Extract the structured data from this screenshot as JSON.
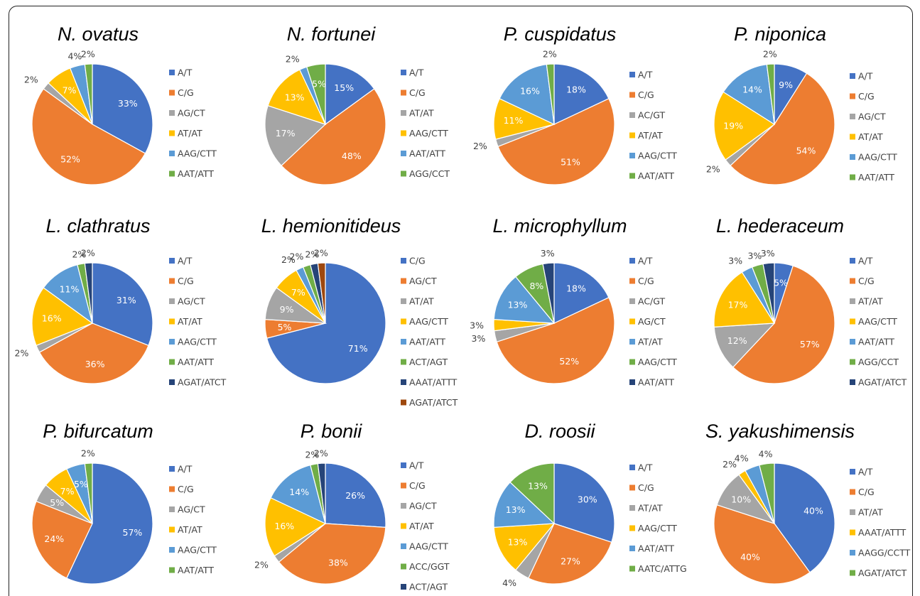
{
  "colors": {
    "blue": "#4472C4",
    "orange": "#ED7D31",
    "gray": "#A5A5A5",
    "yellow": "#FFC000",
    "lightblue": "#5B9BD5",
    "green": "#70AD47",
    "navy": "#264478",
    "rust": "#9E480E"
  },
  "chart_data": [
    {
      "type": "pie",
      "title": "N. ovatus",
      "legend": [
        "A/T",
        "C/G",
        "AG/CT",
        "AT/AT",
        "AAG/CTT",
        "AAT/ATT"
      ],
      "slices": [
        {
          "label": "A/T",
          "value": 33,
          "text": "33%",
          "color": "blue"
        },
        {
          "label": "C/G",
          "value": 52,
          "text": "52%",
          "color": "orange"
        },
        {
          "label": "AG/CT",
          "value": 2,
          "text": "2%",
          "color": "gray"
        },
        {
          "label": "AT/AT",
          "value": 7,
          "text": "7%",
          "color": "yellow"
        },
        {
          "label": "AAG/CTT",
          "value": 4,
          "text": "4%",
          "color": "lightblue"
        },
        {
          "label": "AAT/ATT",
          "value": 2,
          "text": "2%",
          "color": "green"
        }
      ]
    },
    {
      "type": "pie",
      "title": "N. fortunei",
      "legend": [
        "A/T",
        "C/G",
        "AT/AT",
        "AAG/CTT",
        "AAT/ATT",
        "AGG/CCT"
      ],
      "slices": [
        {
          "label": "A/T",
          "value": 15,
          "text": "15%",
          "color": "blue"
        },
        {
          "label": "C/G",
          "value": 48,
          "text": "48%",
          "color": "orange"
        },
        {
          "label": "AT/AT",
          "value": 17,
          "text": "17%",
          "color": "gray"
        },
        {
          "label": "AAG/CTT",
          "value": 13,
          "text": "13%",
          "color": "yellow"
        },
        {
          "label": "AAT/ATT",
          "value": 2,
          "text": "2%",
          "color": "lightblue"
        },
        {
          "label": "AGG/CCT",
          "value": 5,
          "text": "5%",
          "color": "green"
        }
      ]
    },
    {
      "type": "pie",
      "title": "P. cuspidatus",
      "legend": [
        "A/T",
        "C/G",
        "AC/GT",
        "AT/AT",
        "AAG/CTT",
        "AAT/ATT"
      ],
      "slices": [
        {
          "label": "A/T",
          "value": 18,
          "text": "18%",
          "color": "blue"
        },
        {
          "label": "C/G",
          "value": 51,
          "text": "51%",
          "color": "orange"
        },
        {
          "label": "AC/GT",
          "value": 2,
          "text": "2%",
          "color": "gray"
        },
        {
          "label": "AT/AT",
          "value": 11,
          "text": "11%",
          "color": "yellow"
        },
        {
          "label": "AAG/CTT",
          "value": 16,
          "text": "16%",
          "color": "lightblue"
        },
        {
          "label": "AAT/ATT",
          "value": 2,
          "text": "2%",
          "color": "green"
        }
      ]
    },
    {
      "type": "pie",
      "title": "P. niponica",
      "legend": [
        "A/T",
        "C/G",
        "AG/CT",
        "AT/AT",
        "AAG/CTT",
        "AAT/ATT"
      ],
      "slices": [
        {
          "label": "A/T",
          "value": 9,
          "text": "9%",
          "color": "blue"
        },
        {
          "label": "C/G",
          "value": 54,
          "text": "54%",
          "color": "orange"
        },
        {
          "label": "AG/CT",
          "value": 2,
          "text": "2%",
          "color": "gray"
        },
        {
          "label": "AT/AT",
          "value": 19,
          "text": "19%",
          "color": "yellow"
        },
        {
          "label": "AAG/CTT",
          "value": 14,
          "text": "14%",
          "color": "lightblue"
        },
        {
          "label": "AAT/ATT",
          "value": 2,
          "text": "2%",
          "color": "green"
        }
      ]
    },
    {
      "type": "pie",
      "title": "L. clathratus",
      "legend": [
        "A/T",
        "C/G",
        "AG/CT",
        "AT/AT",
        "AAG/CTT",
        "AAT/ATT",
        "AGAT/ATCT"
      ],
      "slices": [
        {
          "label": "A/T",
          "value": 31,
          "text": "31%",
          "color": "blue"
        },
        {
          "label": "C/G",
          "value": 36,
          "text": "36%",
          "color": "orange"
        },
        {
          "label": "AG/CT",
          "value": 2,
          "text": "2%",
          "color": "gray"
        },
        {
          "label": "AT/AT",
          "value": 16,
          "text": "16%",
          "color": "yellow"
        },
        {
          "label": "AAG/CTT",
          "value": 11,
          "text": "11%",
          "color": "lightblue"
        },
        {
          "label": "AAT/ATT",
          "value": 2,
          "text": "2%",
          "color": "green"
        },
        {
          "label": "AGAT/ATCT",
          "value": 2,
          "text": "2%",
          "color": "navy"
        }
      ]
    },
    {
      "type": "pie",
      "title": "L. hemionitideus",
      "legend": [
        "C/G",
        "AG/CT",
        "AT/AT",
        "AAG/CTT",
        "AAT/ATT",
        "ACT/AGT",
        "AAAT/ATTT",
        "AGAT/ATCT"
      ],
      "slices": [
        {
          "label": "C/G",
          "value": 71,
          "text": "71%",
          "color": "blue"
        },
        {
          "label": "AG/CT",
          "value": 5,
          "text": "5%",
          "color": "orange"
        },
        {
          "label": "AT/AT",
          "value": 9,
          "text": "9%",
          "color": "gray"
        },
        {
          "label": "AAG/CTT",
          "value": 7,
          "text": "7%",
          "color": "yellow"
        },
        {
          "label": "AAT/ATT",
          "value": 2,
          "text": "2%",
          "color": "lightblue"
        },
        {
          "label": "ACT/AGT",
          "value": 2,
          "text": "2%",
          "color": "green"
        },
        {
          "label": "AAAT/ATTT",
          "value": 2,
          "text": "2%",
          "color": "navy"
        },
        {
          "label": "AGAT/ATCT",
          "value": 2,
          "text": "2%",
          "color": "rust"
        }
      ]
    },
    {
      "type": "pie",
      "title": "L. microphyllum",
      "legend": [
        "A/T",
        "C/G",
        "AC/GT",
        "AG/CT",
        "AT/AT",
        "AAG/CTT",
        "AAT/ATT"
      ],
      "slices": [
        {
          "label": "A/T",
          "value": 18,
          "text": "18%",
          "color": "blue"
        },
        {
          "label": "C/G",
          "value": 52,
          "text": "52%",
          "color": "orange"
        },
        {
          "label": "AC/GT",
          "value": 3,
          "text": "3%",
          "color": "gray"
        },
        {
          "label": "AG/CT",
          "value": 3,
          "text": "3%",
          "color": "yellow"
        },
        {
          "label": "AT/AT",
          "value": 13,
          "text": "13%",
          "color": "lightblue"
        },
        {
          "label": "AAG/CTT",
          "value": 8,
          "text": "8%",
          "color": "green"
        },
        {
          "label": "AAT/ATT",
          "value": 3,
          "text": "3%",
          "color": "navy"
        }
      ]
    },
    {
      "type": "pie",
      "title": "L. hederaceum",
      "legend": [
        "A/T",
        "C/G",
        "AT/AT",
        "AAG/CTT",
        "AAT/ATT",
        "AGG/CCT",
        "AGAT/ATCT"
      ],
      "slices": [
        {
          "label": "A/T",
          "value": 5,
          "text": "5%",
          "color": "blue"
        },
        {
          "label": "C/G",
          "value": 57,
          "text": "57%",
          "color": "orange"
        },
        {
          "label": "AT/AT",
          "value": 12,
          "text": "12%",
          "color": "gray"
        },
        {
          "label": "AAG/CTT",
          "value": 17,
          "text": "17%",
          "color": "yellow"
        },
        {
          "label": "AAT/ATT",
          "value": 3,
          "text": "3%",
          "color": "lightblue"
        },
        {
          "label": "AGG/CCT",
          "value": 3,
          "text": "3%",
          "color": "green"
        },
        {
          "label": "AGAT/ATCT",
          "value": 3,
          "text": "3%",
          "color": "navy"
        }
      ]
    },
    {
      "type": "pie",
      "title": "P. bifurcatum",
      "legend": [
        "A/T",
        "C/G",
        "AG/CT",
        "AT/AT",
        "AAG/CTT",
        "AAT/ATT"
      ],
      "slices": [
        {
          "label": "A/T",
          "value": 57,
          "text": "57%",
          "color": "blue"
        },
        {
          "label": "C/G",
          "value": 24,
          "text": "24%",
          "color": "orange"
        },
        {
          "label": "AG/CT",
          "value": 5,
          "text": "5%",
          "color": "gray"
        },
        {
          "label": "AT/AT",
          "value": 7,
          "text": "7%",
          "color": "yellow"
        },
        {
          "label": "AAG/CTT",
          "value": 5,
          "text": "5%",
          "color": "lightblue"
        },
        {
          "label": "AAT/ATT",
          "value": 2,
          "text": "2%",
          "color": "green"
        }
      ]
    },
    {
      "type": "pie",
      "title": "P. bonii",
      "legend": [
        "A/T",
        "C/G",
        "AG/CT",
        "AT/AT",
        "AAG/CTT",
        "ACC/GGT",
        "ACT/AGT"
      ],
      "slices": [
        {
          "label": "A/T",
          "value": 26,
          "text": "26%",
          "color": "blue"
        },
        {
          "label": "C/G",
          "value": 38,
          "text": "38%",
          "color": "orange"
        },
        {
          "label": "AG/CT",
          "value": 2,
          "text": "2%",
          "color": "gray"
        },
        {
          "label": "AT/AT",
          "value": 16,
          "text": "16%",
          "color": "yellow"
        },
        {
          "label": "AAG/CTT",
          "value": 14,
          "text": "14%",
          "color": "lightblue"
        },
        {
          "label": "ACC/GGT",
          "value": 2,
          "text": "2%",
          "color": "green"
        },
        {
          "label": "ACT/AGT",
          "value": 2,
          "text": "2%",
          "color": "navy"
        }
      ]
    },
    {
      "type": "pie",
      "title": "D. roosii",
      "legend": [
        "A/T",
        "C/G",
        "AT/AT",
        "AAG/CTT",
        "AAT/ATT",
        "AATC/ATTG"
      ],
      "slices": [
        {
          "label": "A/T",
          "value": 30,
          "text": "30%",
          "color": "blue"
        },
        {
          "label": "C/G",
          "value": 27,
          "text": "27%",
          "color": "orange"
        },
        {
          "label": "AT/AT",
          "value": 4,
          "text": "4%",
          "color": "gray"
        },
        {
          "label": "AAG/CTT",
          "value": 13,
          "text": "13%",
          "color": "yellow"
        },
        {
          "label": "AAT/ATT",
          "value": 13,
          "text": "13%",
          "color": "lightblue"
        },
        {
          "label": "AATC/ATTG",
          "value": 13,
          "text": "13%",
          "color": "green"
        }
      ]
    },
    {
      "type": "pie",
      "title": "S. yakushimensis",
      "legend": [
        "A/T",
        "C/G",
        "AT/AT",
        "AAAT/ATTT",
        "AAGG/CCTT",
        "AGAT/ATCT"
      ],
      "slices": [
        {
          "label": "A/T",
          "value": 40,
          "text": "40%",
          "color": "blue"
        },
        {
          "label": "C/G",
          "value": 40,
          "text": "40%",
          "color": "orange"
        },
        {
          "label": "AT/AT",
          "value": 10,
          "text": "10%",
          "color": "gray"
        },
        {
          "label": "AAAT/ATTT",
          "value": 2,
          "text": "2%",
          "color": "yellow"
        },
        {
          "label": "AAGG/CCTT",
          "value": 4,
          "text": "4%",
          "color": "lightblue"
        },
        {
          "label": "AGAT/ATCT",
          "value": 4,
          "text": "4%",
          "color": "green"
        }
      ]
    }
  ]
}
